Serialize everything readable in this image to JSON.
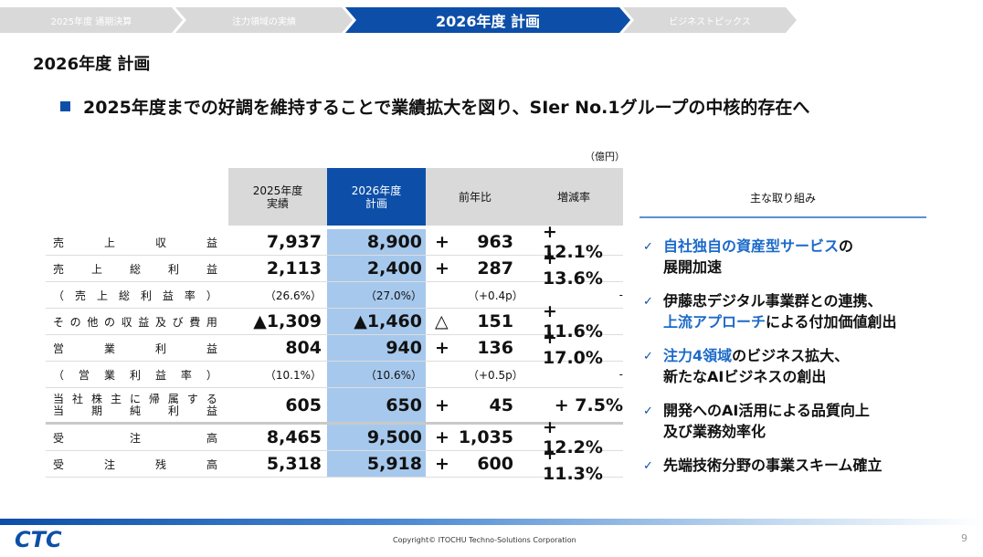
{
  "nav": {
    "steps": [
      "2025年度 通期決算",
      "注力領域の実績",
      "2026年度 計画",
      "ビジネストピックス"
    ],
    "active_index": 2
  },
  "page_title": "2026年度 計画",
  "headline": "2025年度までの好調を維持することで業績拡大を図り、SIer No.1グループの中核的存在へ",
  "unit": "（億円）",
  "table": {
    "headers": {
      "fy2025": [
        "2025年度",
        "実績"
      ],
      "fy2026": [
        "2026年度",
        "計画"
      ],
      "yoy": "前年比",
      "rate": "増減率"
    },
    "rows": [
      {
        "label": "売上収益",
        "fy2025": "7,937",
        "fy2026": "8,900",
        "yoy_sign": "+",
        "yoy": "963",
        "rate": "+ 12.1%"
      },
      {
        "label": "売上総利益",
        "fy2025": "2,113",
        "fy2026": "2,400",
        "yoy_sign": "+",
        "yoy": "287",
        "rate": "+ 13.6%"
      },
      {
        "label": "（売上総利益率）",
        "fy2025": "（26.6%）",
        "fy2026": "（27.0%）",
        "yoy_sign": "",
        "yoy": "（+0.4p）",
        "rate": "-"
      },
      {
        "label": "その他の収益及び費用",
        "fy2025": "▲1,309",
        "fy2026": "▲1,460",
        "yoy_sign": "△",
        "yoy": "151",
        "rate": "+ 11.6%"
      },
      {
        "label": "営業利益",
        "fy2025": "804",
        "fy2026": "940",
        "yoy_sign": "+",
        "yoy": "136",
        "rate": "+ 17.0%"
      },
      {
        "label": "（営業利益率）",
        "fy2025": "（10.1%）",
        "fy2026": "（10.6%）",
        "yoy_sign": "",
        "yoy": "（+0.5p）",
        "rate": "-"
      },
      {
        "label_lines": [
          "当社株主に帰属する",
          "当期純利益"
        ],
        "fy2025": "605",
        "fy2026": "650",
        "yoy_sign": "+",
        "yoy": "45",
        "rate": "+  7.5%"
      },
      {
        "label": "受注高",
        "fy2025": "8,465",
        "fy2026": "9,500",
        "yoy_sign": "+",
        "yoy": "1,035",
        "rate": "+ 12.2%"
      },
      {
        "label": "受注残高",
        "fy2025": "5,318",
        "fy2026": "5,918",
        "yoy_sign": "+",
        "yoy": "600",
        "rate": "+ 11.3%"
      }
    ]
  },
  "initiatives": {
    "title": "主な取り組み",
    "check_icon": "checkmark-icon",
    "items": [
      {
        "highlight": "自社独自の資産型サービス",
        "rest": "の",
        "line2": "展開加速"
      },
      {
        "highlight": "",
        "rest": "伊藤忠デジタル事業群との連携、",
        "line2_highlight": "上流アプローチ",
        "line2": "による付加価値創出"
      },
      {
        "highlight": "注力4領域",
        "rest": "のビジネス拡大、",
        "line2": "新たなAIビジネスの創出"
      },
      {
        "highlight": "",
        "rest": "開発へのAI活用による品質向上",
        "line2": "及び業務効率化"
      },
      {
        "highlight": "",
        "rest": "先端技術分野の事業スキーム確立",
        "line2": ""
      }
    ]
  },
  "footer": {
    "logo_text": "CTC",
    "copyright": "Copyright© ITOCHU Techno-Solutions Corporation",
    "page_number": "9"
  },
  "colors": {
    "brand_blue": "#0d4fa8",
    "plan_column": "#a6c8ec",
    "header_gray": "#d9d9d9",
    "highlight_text": "#1b6ac9"
  }
}
